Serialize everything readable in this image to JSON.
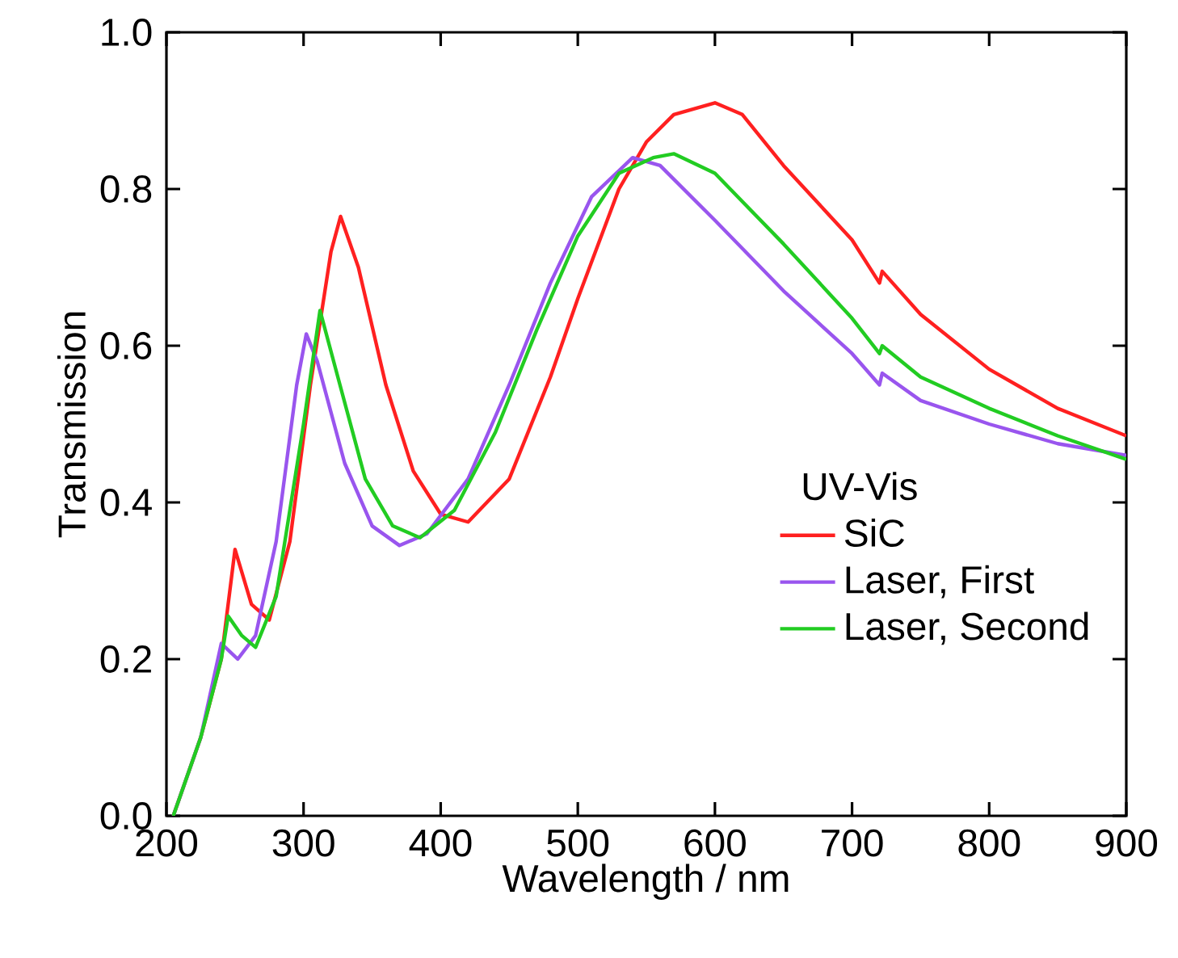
{
  "chart_data": {
    "type": "line",
    "xlabel": "Wavelength / nm",
    "ylabel": "Transmission",
    "legend_title": "UV-Vis",
    "legend": "bottom right",
    "grid": false,
    "marker": "none",
    "line_style": "solid",
    "xlim": [
      200,
      900
    ],
    "xticks": [
      200,
      300,
      400,
      500,
      600,
      700,
      800,
      900
    ],
    "ylim": [
      0,
      1
    ],
    "yticks": [
      {
        "value": 0,
        "label": "0.0"
      },
      0.2,
      0.4,
      0.6,
      0.8,
      {
        "value": 1,
        "label": "1.0"
      }
    ],
    "series": [
      {
        "name": "SiC",
        "color": "#ff2020",
        "x": [
          205,
          225,
          240,
          250,
          262,
          275,
          290,
          305,
          320,
          327,
          340,
          360,
          380,
          400,
          420,
          450,
          480,
          500,
          530,
          550,
          570,
          600,
          620,
          650,
          700,
          720,
          722,
          750,
          800,
          850,
          900
        ],
        "values": [
          0,
          0.1,
          0.2,
          0.34,
          0.27,
          0.25,
          0.35,
          0.55,
          0.72,
          0.765,
          0.7,
          0.55,
          0.44,
          0.385,
          0.375,
          0.43,
          0.56,
          0.66,
          0.8,
          0.86,
          0.895,
          0.91,
          0.895,
          0.83,
          0.735,
          0.68,
          0.695,
          0.64,
          0.57,
          0.52,
          0.485
        ]
      },
      {
        "name": "Laser, First",
        "color": "#9955ee",
        "x": [
          205,
          225,
          240,
          252,
          265,
          280,
          295,
          302,
          310,
          330,
          350,
          370,
          390,
          420,
          450,
          480,
          510,
          540,
          560,
          600,
          650,
          700,
          720,
          722,
          750,
          800,
          850,
          900
        ],
        "values": [
          0,
          0.1,
          0.22,
          0.2,
          0.23,
          0.35,
          0.55,
          0.615,
          0.58,
          0.45,
          0.37,
          0.345,
          0.36,
          0.43,
          0.55,
          0.68,
          0.79,
          0.84,
          0.83,
          0.76,
          0.67,
          0.59,
          0.55,
          0.565,
          0.53,
          0.5,
          0.475,
          0.46
        ]
      },
      {
        "name": "Laser, Second",
        "color": "#22cc22",
        "x": [
          205,
          225,
          240,
          245,
          255,
          265,
          280,
          300,
          312,
          325,
          345,
          365,
          385,
          410,
          440,
          470,
          500,
          530,
          555,
          570,
          600,
          650,
          700,
          720,
          722,
          750,
          800,
          850,
          900
        ],
        "values": [
          0,
          0.1,
          0.2,
          0.255,
          0.23,
          0.215,
          0.28,
          0.5,
          0.645,
          0.56,
          0.43,
          0.37,
          0.355,
          0.39,
          0.49,
          0.62,
          0.74,
          0.82,
          0.84,
          0.845,
          0.82,
          0.73,
          0.635,
          0.59,
          0.6,
          0.56,
          0.52,
          0.485,
          0.455
        ]
      }
    ]
  }
}
